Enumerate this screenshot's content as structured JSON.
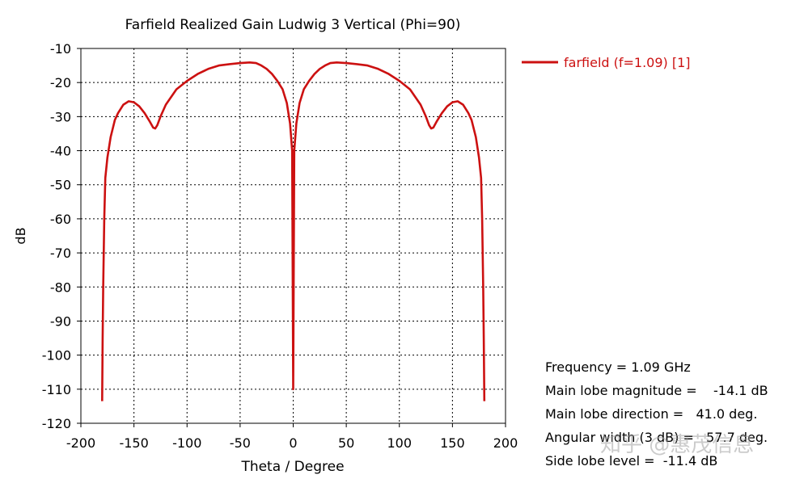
{
  "chart_data": {
    "type": "line",
    "title": "Farfield Realized Gain Ludwig 3 Vertical (Phi=90)",
    "xlabel": "Theta / Degree",
    "ylabel": "dB",
    "xlim": [
      -200,
      200
    ],
    "ylim": [
      -120,
      -10
    ],
    "xticks": [
      -200,
      -150,
      -100,
      -50,
      0,
      50,
      100,
      150,
      200
    ],
    "yticks": [
      -10,
      -20,
      -30,
      -40,
      -50,
      -60,
      -70,
      -80,
      -90,
      -100,
      -110,
      -120
    ],
    "grid": true,
    "legend_position": "top-right",
    "series": [
      {
        "name": "farfield (f=1.09) [1]",
        "color": "#cc1111",
        "x": [
          -180,
          -179.5,
          -179,
          -178,
          -177,
          -175,
          -172,
          -168,
          -165,
          -160,
          -155,
          -150,
          -145,
          -140,
          -135,
          -132,
          -130,
          -128,
          -125,
          -120,
          -110,
          -100,
          -90,
          -80,
          -70,
          -60,
          -50,
          -41,
          -35,
          -30,
          -25,
          -20,
          -15,
          -10,
          -6,
          -3,
          -1,
          0,
          1,
          3,
          6,
          10,
          15,
          20,
          25,
          30,
          35,
          41,
          50,
          60,
          70,
          80,
          90,
          100,
          110,
          120,
          125,
          128,
          130,
          132,
          135,
          140,
          145,
          150,
          155,
          160,
          165,
          168,
          172,
          175,
          177,
          178,
          179,
          179.5,
          180
        ],
        "y": [
          -113.5,
          -95,
          -80,
          -60,
          -48,
          -42,
          -36,
          -31,
          -29,
          -26.5,
          -25.5,
          -25.8,
          -27,
          -29,
          -31.5,
          -33.2,
          -33.5,
          -32.5,
          -30,
          -26.5,
          -22,
          -19.5,
          -17.5,
          -16,
          -15,
          -14.6,
          -14.3,
          -14.1,
          -14.3,
          -15,
          -16,
          -17.5,
          -19.5,
          -22,
          -26,
          -32,
          -40,
          -110,
          -40,
          -32,
          -26,
          -22,
          -19.5,
          -17.5,
          -16,
          -15,
          -14.3,
          -14.1,
          -14.3,
          -14.6,
          -15,
          -16,
          -17.5,
          -19.5,
          -22,
          -26.5,
          -30,
          -32.5,
          -33.5,
          -33.2,
          -31.5,
          -29,
          -27,
          -25.8,
          -25.5,
          -26.5,
          -29,
          -31,
          -36,
          -42,
          -48,
          -60,
          -80,
          -95,
          -113.5
        ]
      }
    ]
  },
  "info": {
    "frequency": "Frequency = 1.09 GHz",
    "main_lobe_magnitude": "Main lobe magnitude =    -14.1 dB",
    "main_lobe_direction": "Main lobe direction =   41.0 deg.",
    "angular_width": "Angular width (3 dB) =   57.7 deg.",
    "side_lobe_level": "Side lobe level =  -11.4 dB"
  },
  "watermark": "知乎 @惠茂信息"
}
